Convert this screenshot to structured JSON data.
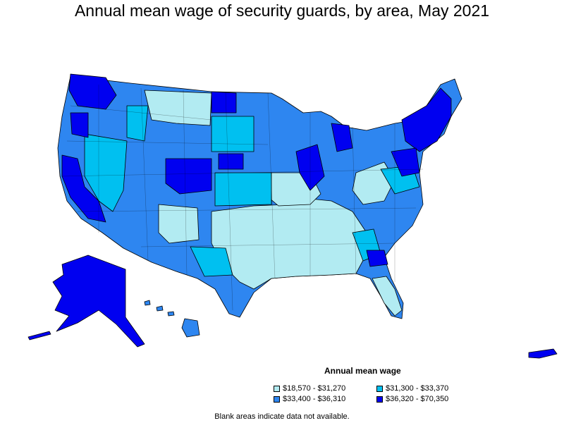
{
  "title": "Annual mean wage of security guards, by area, May 2021",
  "legend": {
    "title": "Annual mean wage",
    "items": [
      {
        "label": "$18,570 - $31,270",
        "color": "#b2ebf2"
      },
      {
        "label": "$31,300 - $33,370",
        "color": "#00c0f0"
      },
      {
        "label": "$33,400 - $36,310",
        "color": "#2e86f0"
      },
      {
        "label": "$36,320 - $70,350",
        "color": "#0000f0"
      }
    ]
  },
  "footnote": "Blank areas indicate data not available."
}
